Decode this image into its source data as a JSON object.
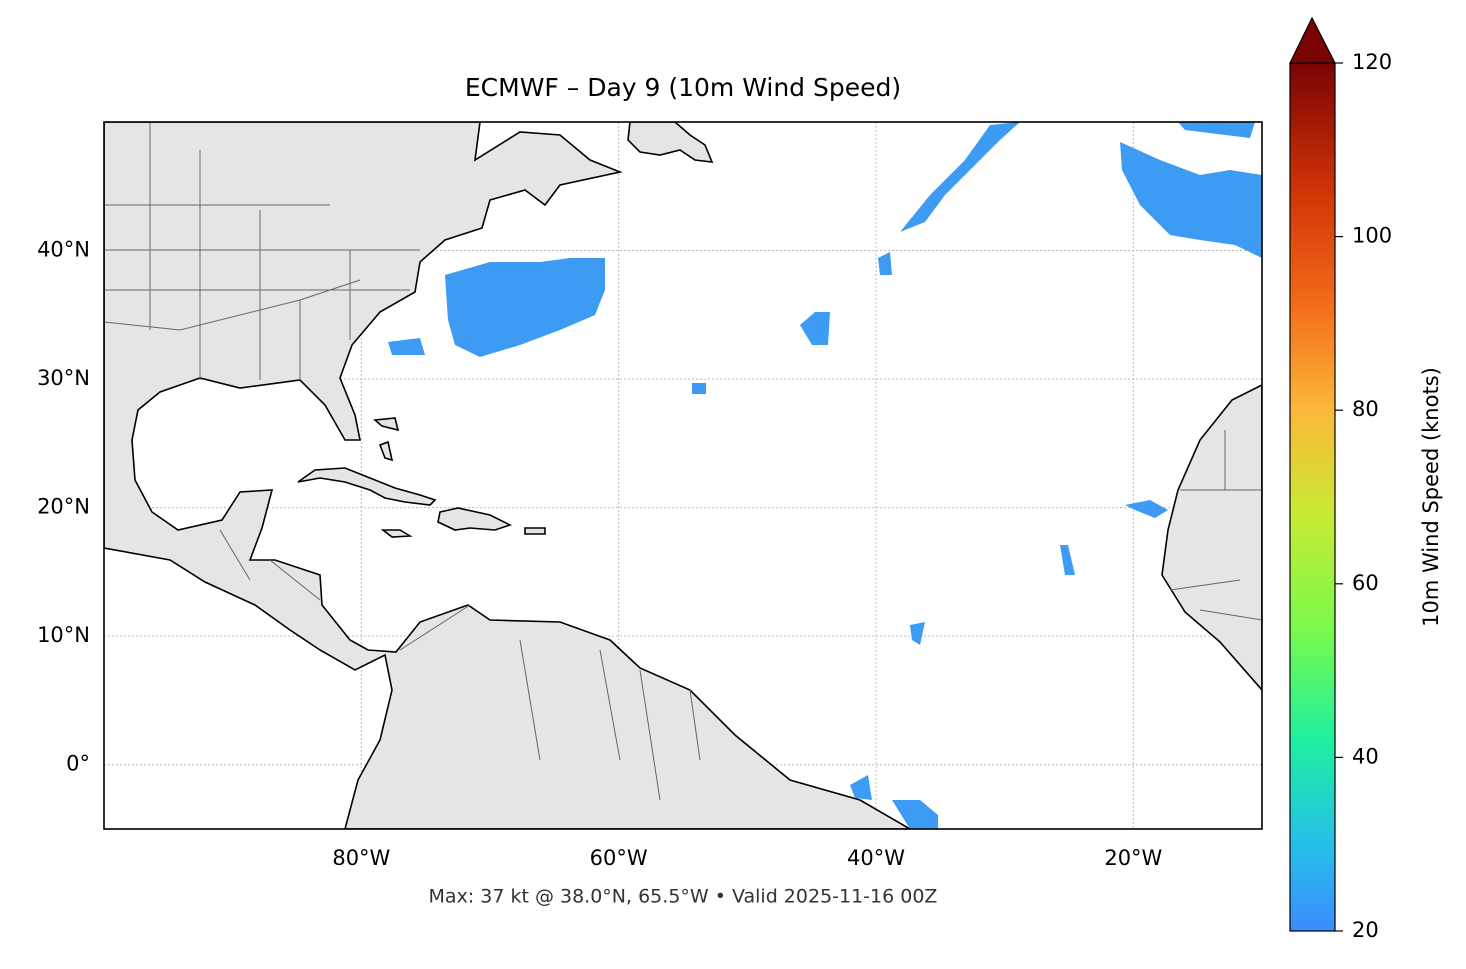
{
  "chart_data": {
    "type": "map",
    "title": "ECMWF – Day 9 (10m Wind Speed)",
    "footer": "Max: 37 kt @ 38.0°N, 65.5°W • Valid 2025-11-16 00Z",
    "xlim": [
      -100,
      -10
    ],
    "ylim": [
      -5,
      50
    ],
    "xticks": [
      {
        "value": -80,
        "label": "80°W"
      },
      {
        "value": -60,
        "label": "60°W"
      },
      {
        "value": -40,
        "label": "40°W"
      },
      {
        "value": -20,
        "label": "20°W"
      }
    ],
    "yticks": [
      {
        "value": 0,
        "label": "0°"
      },
      {
        "value": 10,
        "label": "10°N"
      },
      {
        "value": 20,
        "label": "20°N"
      },
      {
        "value": 30,
        "label": "30°N"
      },
      {
        "value": 40,
        "label": "40°N"
      }
    ],
    "grid": true,
    "colorbar": {
      "label": "10m Wind Speed (knots)",
      "lim": [
        20,
        120
      ],
      "ticks": [
        20,
        40,
        60,
        80,
        100,
        120
      ]
    }
  }
}
